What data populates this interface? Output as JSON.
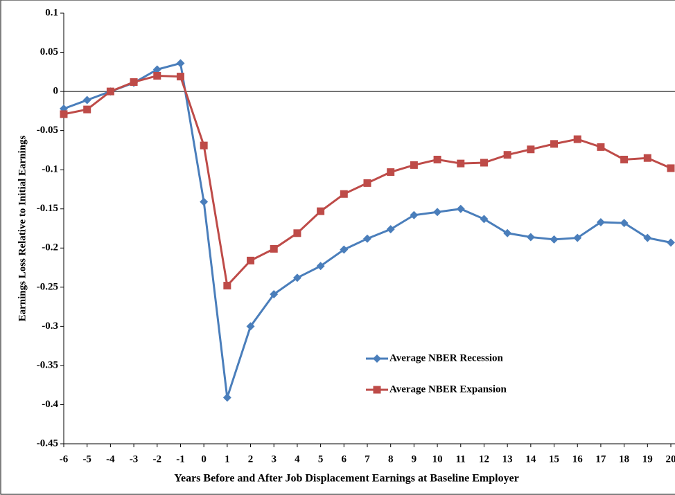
{
  "chart_data": {
    "type": "line",
    "x_label": "Years Before and After Job Displacement Earnings at Baseline Employer",
    "y_label": "Earnings Loss Relative to Initial Earnings",
    "x": [
      -6,
      -5,
      -4,
      -3,
      -2,
      -1,
      0,
      1,
      2,
      3,
      4,
      5,
      6,
      7,
      8,
      9,
      10,
      11,
      12,
      13,
      14,
      15,
      16,
      17,
      18,
      19,
      20
    ],
    "xlim": [
      -6,
      20
    ],
    "xticks": [
      -6,
      -5,
      -4,
      -3,
      -2,
      -1,
      0,
      1,
      2,
      3,
      4,
      5,
      6,
      7,
      8,
      9,
      10,
      11,
      12,
      13,
      14,
      15,
      16,
      17,
      18,
      19,
      20
    ],
    "ylim": [
      -0.45,
      0.1
    ],
    "yticks": [
      0.1,
      0.05,
      0,
      -0.05,
      -0.1,
      -0.15,
      -0.2,
      -0.25,
      -0.3,
      -0.35,
      -0.4,
      -0.45
    ],
    "zero_line": true,
    "series": [
      {
        "name": "Average NBER Recession",
        "color": "#4a7ebb",
        "marker": "diamond",
        "values": [
          -0.022,
          -0.011,
          0.0,
          0.011,
          0.028,
          0.036,
          -0.141,
          -0.391,
          -0.3,
          -0.259,
          -0.238,
          -0.223,
          -0.202,
          -0.188,
          -0.176,
          -0.158,
          -0.154,
          -0.15,
          -0.163,
          -0.181,
          -0.186,
          -0.189,
          -0.187,
          -0.167,
          -0.168,
          -0.187,
          -0.193
        ]
      },
      {
        "name": "Average NBER Expansion",
        "color": "#be4b48",
        "marker": "square",
        "values": [
          -0.029,
          -0.023,
          0.0,
          0.012,
          0.02,
          0.019,
          -0.069,
          -0.248,
          -0.216,
          -0.201,
          -0.181,
          -0.153,
          -0.131,
          -0.117,
          -0.103,
          -0.094,
          -0.087,
          -0.092,
          -0.091,
          -0.081,
          -0.074,
          -0.067,
          -0.061,
          -0.071,
          -0.087,
          -0.085,
          -0.098
        ]
      }
    ]
  }
}
